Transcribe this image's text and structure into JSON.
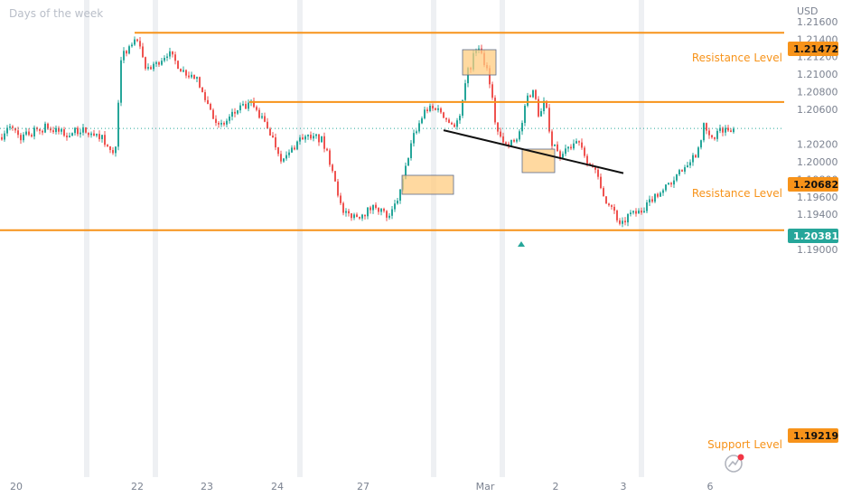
{
  "chart_data": {
    "type": "candlestick",
    "title": "Days of the week",
    "currency": "USD",
    "ylim": [
      1.1898,
      1.2178
    ],
    "y_ticks": [
      "1.21600",
      "1.21400",
      "1.21200",
      "1.21000",
      "1.20800",
      "1.20600",
      "1.20200",
      "1.20000",
      "1.19800",
      "1.19600",
      "1.19400",
      "1.19000"
    ],
    "x_ticks": [
      "20",
      "22",
      "23",
      "24",
      "27",
      "Mar",
      "2",
      "3",
      "6"
    ],
    "last_price": "1.20381",
    "levels": [
      {
        "price": "1.21472",
        "label": "Resistance Level"
      },
      {
        "price": "1.20682",
        "label": "Resistance Level"
      },
      {
        "price": "1.19219",
        "label": ""
      }
    ],
    "support_label": "Support Level",
    "trendline": {
      "from": 1.2036,
      "to": 1.1987
    },
    "colors": {
      "up": "#26a69a",
      "down": "#ef5350",
      "level": "#f7931a",
      "box_fill": "#ffcc80",
      "price_line": "#26a69a"
    }
  }
}
